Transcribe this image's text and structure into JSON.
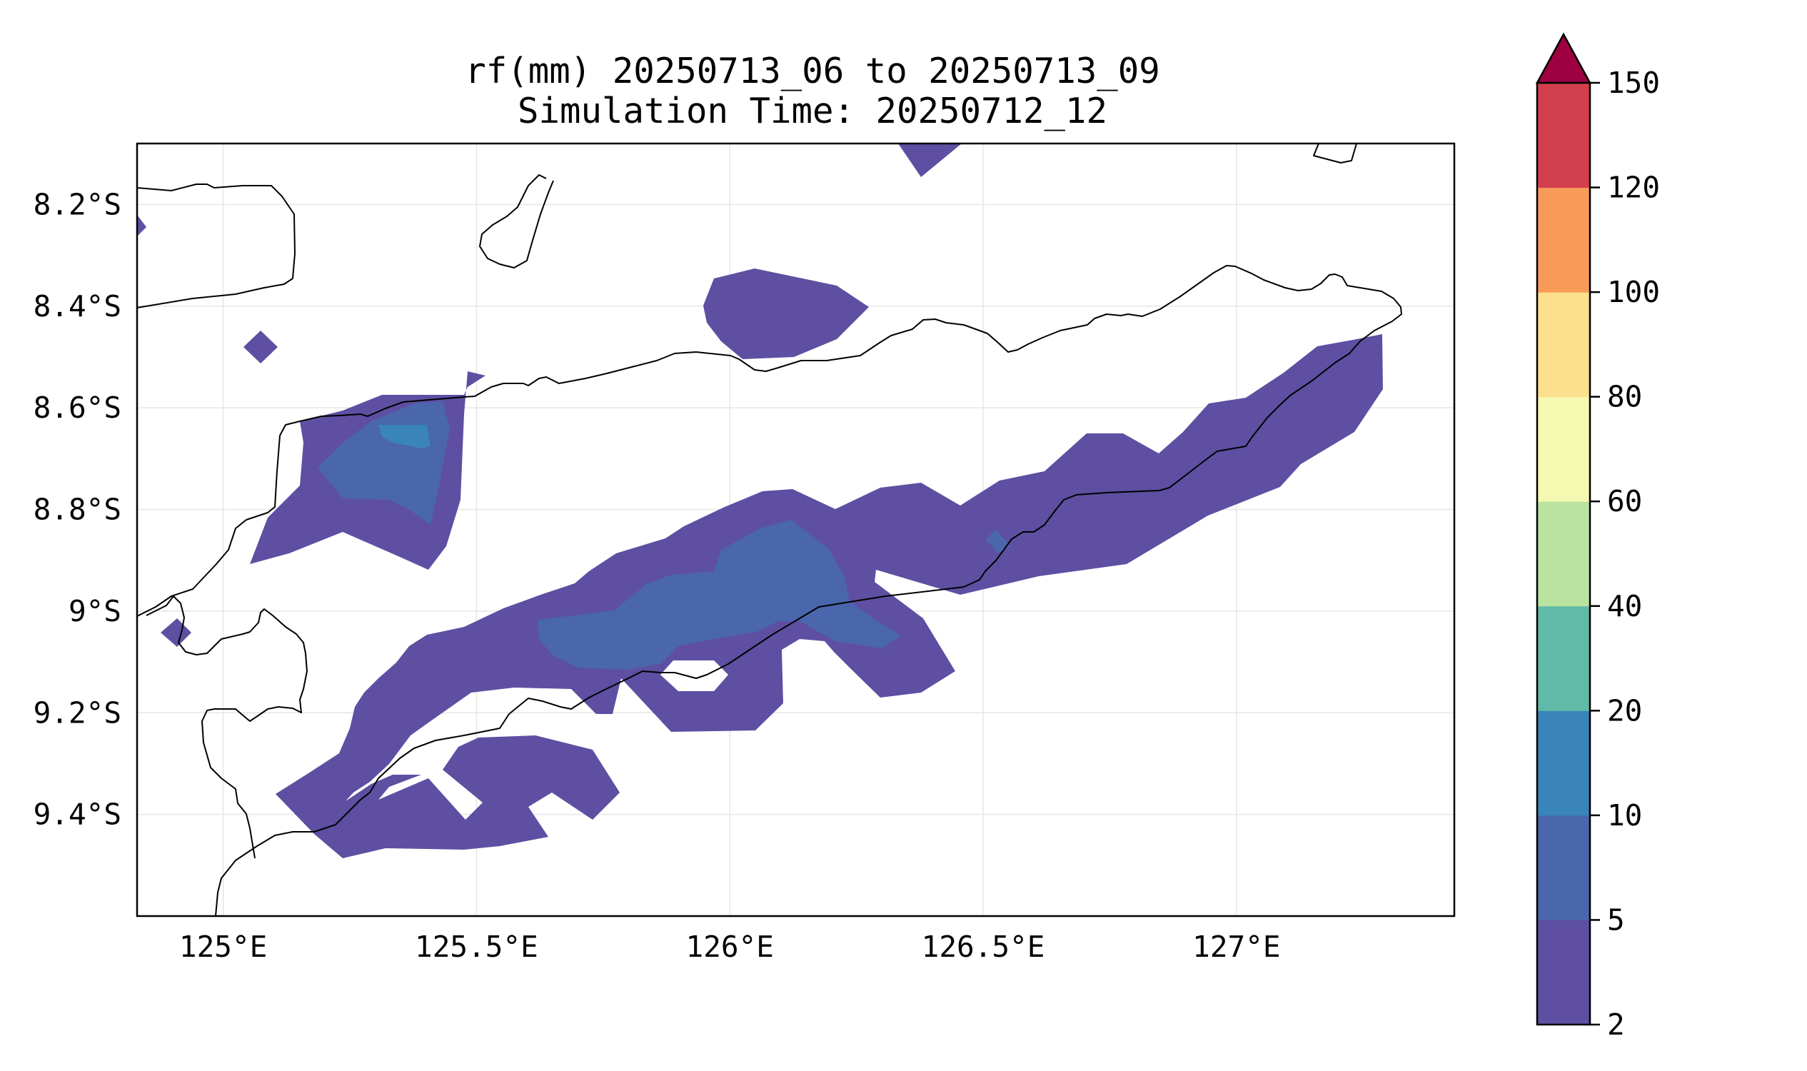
{
  "title": {
    "line1": "rf(mm) 20250713_06 to 20250713_09",
    "line2": "Simulation Time: 20250712_12"
  },
  "map": {
    "lon_range": [
      124.83,
      127.43
    ],
    "lat_range": [
      -9.6,
      -8.08
    ],
    "x_ticks": [
      {
        "value": 125.0,
        "label": "125°E"
      },
      {
        "value": 125.5,
        "label": "125.5°E"
      },
      {
        "value": 126.0,
        "label": "126°E"
      },
      {
        "value": 126.5,
        "label": "126.5°E"
      },
      {
        "value": 127.0,
        "label": "127°E"
      }
    ],
    "y_ticks": [
      {
        "value": -8.2,
        "label": "8.2°S"
      },
      {
        "value": -8.4,
        "label": "8.4°S"
      },
      {
        "value": -8.6,
        "label": "8.6°S"
      },
      {
        "value": -8.8,
        "label": "8.8°S"
      },
      {
        "value": -9.0,
        "label": "9°S"
      },
      {
        "value": -9.2,
        "label": "9.2°S"
      },
      {
        "value": -9.4,
        "label": "9.4°S"
      }
    ],
    "grid": true
  },
  "colorbar": {
    "levels": [
      {
        "value": 2,
        "label": "2"
      },
      {
        "value": 5,
        "label": "5"
      },
      {
        "value": 10,
        "label": "10"
      },
      {
        "value": 20,
        "label": "20"
      },
      {
        "value": 40,
        "label": "40"
      },
      {
        "value": 60,
        "label": "60"
      },
      {
        "value": 80,
        "label": "80"
      },
      {
        "value": 100,
        "label": "100"
      },
      {
        "value": 120,
        "label": "120"
      },
      {
        "value": 150,
        "label": "150"
      }
    ],
    "colors": [
      "#5e4fa2",
      "#4a66ad",
      "#3984b9",
      "#5fbaa8",
      "#bbe3a0",
      "#f4f8b0",
      "#fce08d",
      "#f99b58",
      "#d23f4e"
    ],
    "extend_color": "#9e0142",
    "extend": "max"
  },
  "colors": {
    "level_2_5": "#5e4fa2",
    "level_5_10": "#4a66ad",
    "level_10_20": "#3984b9",
    "coastline": "#000000"
  }
}
